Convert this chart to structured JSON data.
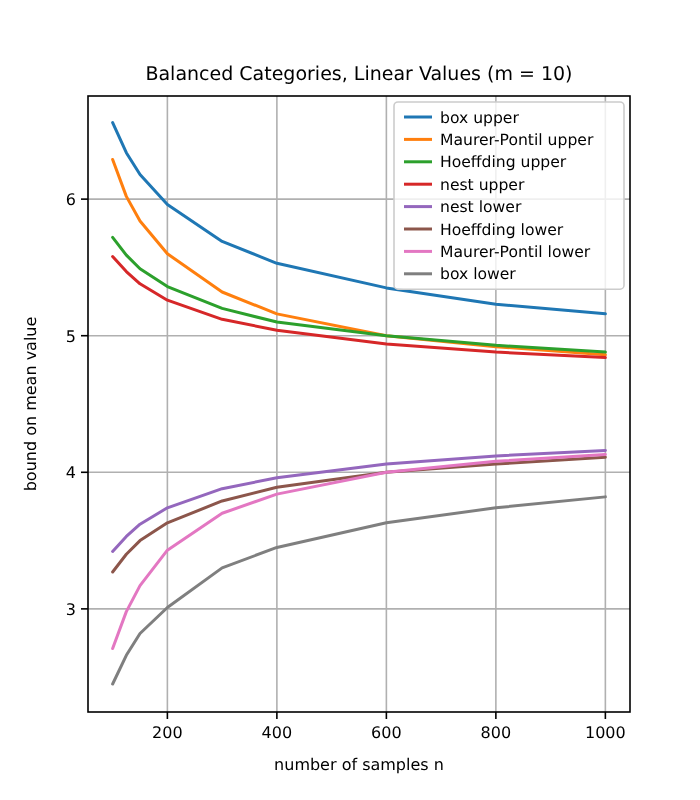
{
  "chart_data": {
    "type": "line",
    "title": "Balanced Categories, Linear Values (m = 10)",
    "xlabel": "number of samples n",
    "ylabel": "bound on mean value",
    "x": [
      100,
      125,
      150,
      200,
      300,
      400,
      600,
      800,
      1000
    ],
    "series": [
      {
        "name": "box upper",
        "color": "#1f77b4",
        "values": [
          6.56,
          6.34,
          6.18,
          5.96,
          5.69,
          5.53,
          5.35,
          5.23,
          5.16
        ]
      },
      {
        "name": "Maurer-Pontil upper",
        "color": "#ff7f0e",
        "values": [
          6.29,
          6.02,
          5.84,
          5.6,
          5.32,
          5.16,
          5.0,
          4.92,
          4.86
        ]
      },
      {
        "name": "Hoeffding upper",
        "color": "#2ca02c",
        "values": [
          5.72,
          5.59,
          5.49,
          5.36,
          5.2,
          5.1,
          5.0,
          4.93,
          4.88
        ]
      },
      {
        "name": "nest upper",
        "color": "#d62728",
        "values": [
          5.58,
          5.47,
          5.38,
          5.26,
          5.12,
          5.04,
          4.94,
          4.88,
          4.84
        ]
      },
      {
        "name": "nest lower",
        "color": "#9467bd",
        "values": [
          3.42,
          3.53,
          3.62,
          3.74,
          3.88,
          3.96,
          4.06,
          4.12,
          4.16
        ]
      },
      {
        "name": "Hoeffding lower",
        "color": "#8c564b",
        "values": [
          3.27,
          3.4,
          3.5,
          3.63,
          3.79,
          3.89,
          4.0,
          4.06,
          4.11
        ]
      },
      {
        "name": "Maurer-Pontil lower",
        "color": "#e377c2",
        "values": [
          2.71,
          2.98,
          3.17,
          3.43,
          3.7,
          3.84,
          4.0,
          4.08,
          4.13
        ]
      },
      {
        "name": "box lower",
        "color": "#7f7f7f",
        "values": [
          2.45,
          2.66,
          2.82,
          3.01,
          3.3,
          3.45,
          3.63,
          3.74,
          3.82
        ]
      }
    ],
    "xlim": [
      55,
      1045
    ],
    "xticks": [
      200,
      400,
      600,
      800,
      1000
    ],
    "ylim": [
      2.245,
      6.755
    ],
    "yticks": [
      3,
      4,
      5,
      6
    ],
    "grid": true,
    "legend": "top right",
    "marker": "none",
    "line_style": "solid"
  }
}
